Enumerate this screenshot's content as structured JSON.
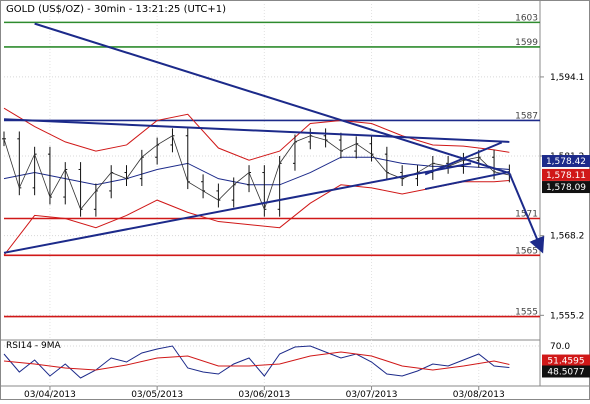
{
  "chart_data": {
    "type": "line",
    "title": "GOLD (US$/OZ) - 30min - 13:21:25 (UTC+1)",
    "y_ticks": [
      "1,594.1",
      "1,581.2",
      "1,568.2",
      "1,555.2"
    ],
    "y_tick_values": [
      1594.1,
      1581.2,
      1568.2,
      1555.2
    ],
    "ylim": [
      1551.5,
      1606.0
    ],
    "x_ticks": [
      "03/04/2013",
      "03/05/2013",
      "03/06/2013",
      "03/07/2013",
      "03/08/2013"
    ],
    "x_tick_index": [
      12,
      40,
      68,
      96,
      124
    ],
    "x_count": 140,
    "price_badges": [
      {
        "label": "1,578.42",
        "value": 1578.42,
        "bg": "#1c2a8a",
        "fg": "#ffffff"
      },
      {
        "label": "1,578.11",
        "value": 1578.11,
        "bg": "#d01818",
        "fg": "#ffffff"
      },
      {
        "label": "1,578.09",
        "value": 1578.09,
        "bg": "#111111",
        "fg": "#ffffff"
      }
    ],
    "levels": [
      {
        "label": "1603",
        "value": 1603.0,
        "color": "#2e8b2e"
      },
      {
        "label": "1599",
        "value": 1599.0,
        "color": "#2e8b2e"
      },
      {
        "label": "1587",
        "value": 1587.0,
        "color": "#1c2a8a"
      },
      {
        "label": "1571",
        "value": 1571.0,
        "color": "#d01818"
      },
      {
        "label": "1565",
        "value": 1565.0,
        "color": "#d01818"
      },
      {
        "label": "1555",
        "value": 1555.0,
        "color": "#d01818"
      }
    ],
    "trendlines": [
      {
        "x": [
          0,
          132
        ],
        "y": [
          1587.2,
          1583.5
        ],
        "color": "#1c2a8a"
      },
      {
        "x": [
          8,
          132
        ],
        "y": [
          1602.8,
          1578.4
        ],
        "color": "#1c2a8a"
      },
      {
        "x": [
          0,
          122
        ],
        "y": [
          1565.4,
          1580.0
        ],
        "color": "#1c2a8a"
      },
      {
        "x": [
          110,
          132
        ],
        "y": [
          1575.8,
          1578.6
        ],
        "color": "#1c2a8a"
      },
      {
        "x": [
          110,
          130
        ],
        "y": [
          1578.2,
          1583.4
        ],
        "color": "#1c2a8a"
      },
      {
        "x": [
          132,
          140
        ],
        "y": [
          1578.4,
          1566.5
        ],
        "color": "#1c2a8a",
        "arrow": true
      }
    ],
    "price_series": {
      "name": "",
      "x": [
        0,
        4,
        8,
        12,
        16,
        20,
        24,
        28,
        32,
        36,
        40,
        44,
        48,
        52,
        56,
        60,
        64,
        68,
        72,
        76,
        80,
        84,
        88,
        92,
        96,
        100,
        104,
        108,
        112,
        116,
        120,
        124,
        128,
        132
      ],
      "y": [
        1584.0,
        1576.0,
        1581.5,
        1574.5,
        1579.0,
        1572.5,
        1575.5,
        1578.5,
        1577.5,
        1581.0,
        1583.0,
        1584.5,
        1577.0,
        1575.5,
        1574.0,
        1576.5,
        1578.5,
        1572.5,
        1580.0,
        1583.5,
        1584.5,
        1583.8,
        1582.0,
        1583.2,
        1581.5,
        1578.5,
        1577.5,
        1578.5,
        1580.0,
        1579.5,
        1580.5,
        1581.0,
        1578.6,
        1578.1
      ]
    },
    "bollinger_upper": {
      "x": [
        0,
        8,
        16,
        24,
        32,
        40,
        48,
        56,
        64,
        72,
        80,
        88,
        96,
        104,
        112,
        120,
        128,
        132
      ],
      "y": [
        1589.0,
        1586.0,
        1583.5,
        1582.0,
        1583.0,
        1587.0,
        1588.0,
        1582.5,
        1580.5,
        1582.0,
        1586.5,
        1587.0,
        1586.5,
        1584.5,
        1583.0,
        1582.8,
        1582.2,
        1581.8
      ]
    },
    "bollinger_lower": {
      "x": [
        0,
        8,
        16,
        24,
        32,
        40,
        48,
        56,
        64,
        72,
        80,
        88,
        96,
        104,
        112,
        120,
        128,
        132
      ],
      "y": [
        1565.0,
        1571.5,
        1571.0,
        1569.5,
        1571.5,
        1574.0,
        1572.0,
        1570.5,
        1570.0,
        1569.5,
        1573.5,
        1576.5,
        1576.0,
        1575.0,
        1576.0,
        1577.0,
        1577.0,
        1577.2
      ]
    },
    "moving_average": {
      "x": [
        0,
        8,
        16,
        24,
        32,
        40,
        48,
        56,
        64,
        72,
        80,
        88,
        96,
        104,
        112,
        120,
        128,
        132
      ],
      "y": [
        1577.5,
        1578.5,
        1577.5,
        1576.5,
        1577.5,
        1579.0,
        1580.0,
        1577.5,
        1576.5,
        1576.5,
        1578.5,
        1581.0,
        1581.0,
        1580.0,
        1579.5,
        1579.5,
        1579.2,
        1579.0
      ]
    },
    "rsi_panel": {
      "label": "RSI14 - 9MA",
      "tick": "70.0",
      "tick_value": 70.0,
      "ylim": [
        30.0,
        76.0
      ],
      "badges": [
        {
          "label": "51.4595",
          "value": 51.4595,
          "bg": "#d01818",
          "fg": "#ffffff"
        },
        {
          "label": "48.5077",
          "value": 48.5077,
          "bg": "#111111",
          "fg": "#ffffff"
        }
      ],
      "rsi": {
        "x": [
          0,
          4,
          8,
          12,
          16,
          20,
          24,
          28,
          32,
          36,
          40,
          44,
          48,
          52,
          56,
          60,
          64,
          68,
          72,
          76,
          80,
          84,
          88,
          92,
          96,
          100,
          104,
          108,
          112,
          116,
          120,
          124,
          128,
          132
        ],
        "y": [
          62,
          44,
          56,
          40,
          52,
          38,
          46,
          58,
          54,
          63,
          67,
          70,
          48,
          44,
          42,
          52,
          58,
          40,
          62,
          69,
          70,
          64,
          58,
          62,
          54,
          42,
          40,
          45,
          52,
          50,
          56,
          62,
          50,
          48.5
        ]
      },
      "ma": {
        "x": [
          0,
          8,
          16,
          24,
          32,
          40,
          48,
          56,
          64,
          72,
          80,
          88,
          96,
          104,
          112,
          120,
          128,
          132
        ],
        "y": [
          55,
          52,
          48,
          46,
          51,
          58,
          60,
          50,
          50,
          52,
          60,
          64,
          60,
          50,
          46,
          50,
          55,
          51.5
        ]
      }
    }
  }
}
